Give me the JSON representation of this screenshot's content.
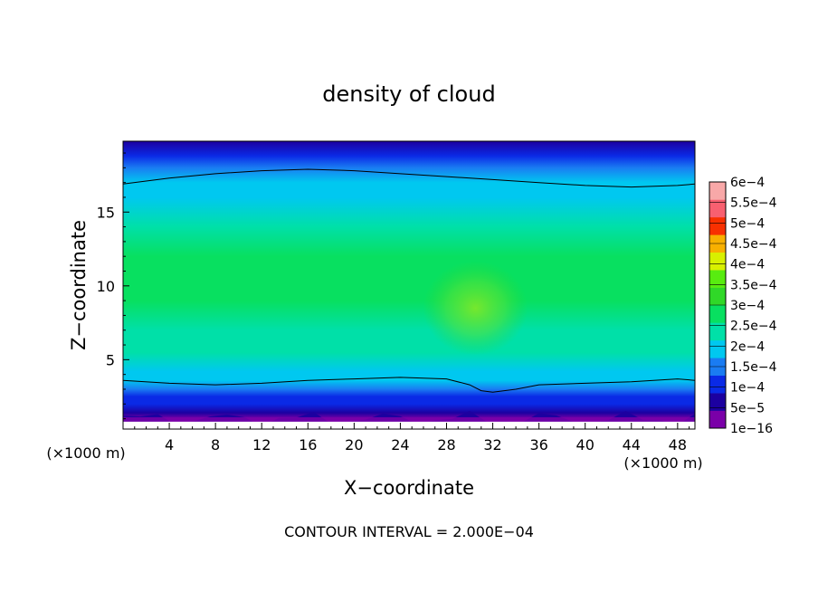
{
  "chart_data": {
    "type": "heatmap",
    "title": "density of cloud",
    "xlabel": "X−coordinate",
    "ylabel": "Z−coordinate",
    "x_unit_label": "(×1000 m)",
    "x_unit_label_right": "(×1000 m)",
    "footer": "CONTOUR INTERVAL = 2.000E−04",
    "xlim": [
      0,
      49.5
    ],
    "ylim": [
      0.3,
      19.8
    ],
    "x_ticks": [
      4,
      8,
      12,
      16,
      20,
      24,
      28,
      32,
      36,
      40,
      44,
      48
    ],
    "y_ticks": [
      5,
      10,
      15
    ],
    "contour_interval": 0.0002,
    "colorbar": {
      "levels": [
        "1e−16",
        "5e−5",
        "1e−4",
        "1.5e−4",
        "2e−4",
        "2.5e−4",
        "3e−4",
        "3.5e−4",
        "4e−4",
        "4.5e−4",
        "5e−4",
        "5.5e−4",
        "6e−4"
      ],
      "colors": [
        "#7a00a8",
        "#1c00a0",
        "#0a2ae6",
        "#1a7cf2",
        "#00c8f0",
        "#00e0a8",
        "#08e060",
        "#30d828",
        "#58ec10",
        "#d8f000",
        "#f8b000",
        "#f83000",
        "#f86070",
        "#f8a8a8"
      ]
    },
    "field_profile_z": [
      0.3,
      1.0,
      1.4,
      2.0,
      2.5,
      3.0,
      3.6,
      4.2,
      5.5,
      7.0,
      9.0,
      10.0,
      12.0,
      14.0,
      16.0,
      17.0,
      18.0,
      18.8,
      19.8
    ],
    "field_profile_value": [
      2e-05,
      4e-05,
      7e-05,
      0.0001,
      0.00014,
      0.00017,
      0.0002,
      0.00024,
      0.00027,
      0.00029,
      0.00031,
      0.00031,
      0.0003,
      0.00027,
      0.00023,
      0.0002,
      0.00016,
      0.00011,
      7e-05
    ],
    "contour_lines": [
      {
        "level": 0.0002,
        "x": [
          0,
          4,
          8,
          12,
          16,
          20,
          24,
          28,
          30,
          31,
          32,
          34,
          36,
          40,
          44,
          48,
          49.5
        ],
        "z": [
          3.6,
          3.4,
          3.3,
          3.4,
          3.6,
          3.7,
          3.8,
          3.7,
          3.3,
          2.9,
          2.8,
          3.0,
          3.3,
          3.4,
          3.5,
          3.7,
          3.6
        ]
      },
      {
        "level": 0.0002,
        "x": [
          0,
          4,
          8,
          12,
          16,
          20,
          24,
          28,
          32,
          36,
          40,
          44,
          48,
          49.5
        ],
        "z": [
          16.9,
          17.3,
          17.6,
          17.8,
          17.9,
          17.8,
          17.6,
          17.4,
          17.2,
          17.0,
          16.8,
          16.7,
          16.8,
          16.9
        ]
      }
    ],
    "hotspot": {
      "x": 30.5,
      "z": 8.5,
      "value": 0.00036
    },
    "bottom_gap_value": "white"
  }
}
